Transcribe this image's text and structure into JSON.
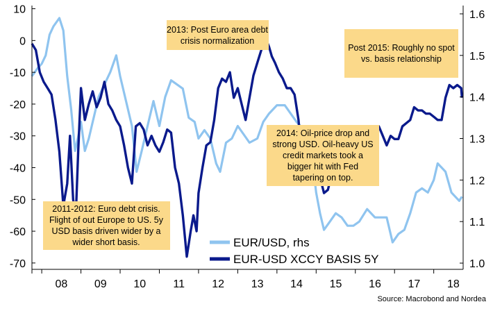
{
  "chart_data": {
    "type": "line",
    "x_tick_labels": [
      "08",
      "09",
      "10",
      "11",
      "12",
      "13",
      "14",
      "15",
      "16",
      "17",
      "18"
    ],
    "left_axis": {
      "ticks": [
        10,
        0,
        -10,
        -20,
        -30,
        -40,
        -50,
        -60,
        -70
      ],
      "ylim": [
        -72,
        11
      ]
    },
    "right_axis": {
      "ticks": [
        "1.6",
        "1.5",
        "1.4",
        "1.3",
        "1.2",
        "1.1",
        "1.0"
      ],
      "ylim": [
        0.985,
        1.62
      ]
    },
    "xlim": [
      2007.75,
      2018.75
    ],
    "series": [
      {
        "name": "EUR/USD, rhs",
        "axis": "right",
        "color": "#8fc4ef",
        "x": [
          2007.75,
          2007.9,
          2008.0,
          2008.1,
          2008.2,
          2008.3,
          2008.45,
          2008.55,
          2008.65,
          2008.75,
          2008.85,
          2008.92,
          2009.0,
          2009.1,
          2009.2,
          2009.3,
          2009.45,
          2009.6,
          2009.75,
          2009.9,
          2010.0,
          2010.15,
          2010.3,
          2010.42,
          2010.55,
          2010.7,
          2010.85,
          2011.0,
          2011.15,
          2011.3,
          2011.45,
          2011.6,
          2011.75,
          2011.9,
          2012.0,
          2012.15,
          2012.3,
          2012.45,
          2012.55,
          2012.7,
          2012.85,
          2013.0,
          2013.15,
          2013.3,
          2013.5,
          2013.65,
          2013.8,
          2014.0,
          2014.2,
          2014.35,
          2014.5,
          2014.6,
          2014.75,
          2014.9,
          2015.0,
          2015.1,
          2015.2,
          2015.35,
          2015.5,
          2015.65,
          2015.8,
          2015.95,
          2016.1,
          2016.3,
          2016.5,
          2016.65,
          2016.8,
          2016.95,
          2017.1,
          2017.25,
          2017.4,
          2017.55,
          2017.7,
          2017.85,
          2018.0,
          2018.1,
          2018.2,
          2018.3,
          2018.45,
          2018.55,
          2018.65,
          2018.72
        ],
        "values": [
          1.45,
          1.47,
          1.48,
          1.5,
          1.55,
          1.57,
          1.59,
          1.56,
          1.45,
          1.37,
          1.27,
          1.3,
          1.34,
          1.27,
          1.3,
          1.34,
          1.4,
          1.43,
          1.46,
          1.5,
          1.45,
          1.39,
          1.33,
          1.22,
          1.27,
          1.33,
          1.39,
          1.33,
          1.4,
          1.44,
          1.43,
          1.42,
          1.35,
          1.34,
          1.3,
          1.32,
          1.3,
          1.24,
          1.22,
          1.29,
          1.3,
          1.33,
          1.31,
          1.29,
          1.3,
          1.34,
          1.36,
          1.38,
          1.38,
          1.36,
          1.34,
          1.33,
          1.28,
          1.25,
          1.17,
          1.12,
          1.08,
          1.1,
          1.12,
          1.11,
          1.09,
          1.09,
          1.1,
          1.13,
          1.11,
          1.11,
          1.11,
          1.05,
          1.07,
          1.08,
          1.12,
          1.17,
          1.18,
          1.17,
          1.2,
          1.24,
          1.23,
          1.22,
          1.17,
          1.16,
          1.15,
          1.16
        ]
      },
      {
        "name": "EUR-USD XCCY BASIS 5Y",
        "axis": "left",
        "color": "#0a1a8c",
        "x": [
          2007.75,
          2007.85,
          2007.95,
          2008.05,
          2008.15,
          2008.25,
          2008.35,
          2008.45,
          2008.55,
          2008.65,
          2008.72,
          2008.8,
          2008.87,
          2008.93,
          2009.0,
          2009.1,
          2009.2,
          2009.3,
          2009.4,
          2009.5,
          2009.6,
          2009.7,
          2009.8,
          2009.9,
          2010.0,
          2010.1,
          2010.2,
          2010.3,
          2010.4,
          2010.5,
          2010.6,
          2010.7,
          2010.8,
          2010.9,
          2011.0,
          2011.1,
          2011.2,
          2011.3,
          2011.4,
          2011.5,
          2011.6,
          2011.7,
          2011.8,
          2011.87,
          2011.95,
          2012.0,
          2012.1,
          2012.2,
          2012.3,
          2012.4,
          2012.5,
          2012.6,
          2012.7,
          2012.8,
          2012.9,
          2013.0,
          2013.1,
          2013.2,
          2013.3,
          2013.4,
          2013.5,
          2013.6,
          2013.7,
          2013.8,
          2013.87,
          2013.95,
          2014.05,
          2014.15,
          2014.25,
          2014.35,
          2014.45,
          2014.55,
          2014.6,
          2014.7,
          2014.8,
          2014.9,
          2015.0,
          2015.1,
          2015.2,
          2015.3,
          2015.4,
          2015.5,
          2015.6,
          2015.7,
          2015.8,
          2015.9,
          2016.0,
          2016.1,
          2016.2,
          2016.3,
          2016.4,
          2016.5,
          2016.6,
          2016.7,
          2016.8,
          2016.9,
          2017.0,
          2017.1,
          2017.2,
          2017.3,
          2017.4,
          2017.5,
          2017.6,
          2017.7,
          2017.8,
          2017.9,
          2018.0,
          2018.1,
          2018.2,
          2018.3,
          2018.4,
          2018.5,
          2018.6,
          2018.7,
          2018.72
        ],
        "values": [
          -1,
          -3,
          -10,
          -13,
          -15,
          -17,
          -25,
          -35,
          -52,
          -45,
          -30,
          -50,
          -55,
          -35,
          -15,
          -25,
          -20,
          -16,
          -21,
          -18,
          -13,
          -20,
          -22,
          -25,
          -27,
          -33,
          -40,
          -45,
          -27,
          -26,
          -28,
          -33,
          -30,
          -33,
          -35,
          -32,
          -28,
          -29,
          -40,
          -45,
          -55,
          -68,
          -60,
          -55,
          -60,
          -48,
          -40,
          -33,
          -32,
          -25,
          -15,
          -12,
          -13,
          -10,
          -18,
          -15,
          -20,
          -25,
          -18,
          -11,
          -7,
          -3,
          1,
          -2,
          -5,
          -7,
          -10,
          -12,
          -15,
          -15,
          -17,
          -25,
          -32,
          -35,
          -38,
          -42,
          -40,
          -43,
          -48,
          -47,
          -42,
          -35,
          -28,
          -36,
          -37,
          -37,
          -37,
          -38,
          -32,
          -30,
          -33,
          -30,
          -27,
          -30,
          -33,
          -30,
          -31,
          -31,
          -27,
          -26,
          -25,
          -21,
          -22,
          -22,
          -23,
          -23,
          -24,
          -25,
          -25,
          -18,
          -14,
          -15,
          -14,
          -15,
          -18
        ]
      }
    ],
    "legend": [
      "EUR/USD, rhs",
      "EUR-USD XCCY BASIS 5Y"
    ],
    "legend_position": "bottom-center",
    "grid": false
  },
  "annotations": [
    {
      "lines": [
        "2013: Post Euro area debt",
        "crisis normalization"
      ]
    },
    {
      "lines": [
        "Post 2015: Roughly no spot",
        "vs. basis relationship"
      ]
    },
    {
      "lines": [
        "2014: Oil-price drop and",
        "strong USD. Oil-heavy US",
        "credit markets took a",
        "bigger hit with Fed",
        "tapering on top."
      ]
    },
    {
      "lines": [
        "2011-2012: Euro debt crisis.",
        "Flight of out Europe to US. 5y",
        "USD basis driven wider by a",
        "wider short basis."
      ]
    }
  ],
  "source": "Source: Macrobond and Nordea",
  "colors": {
    "note_fill": "#fbd98a",
    "axis": "#000000"
  }
}
